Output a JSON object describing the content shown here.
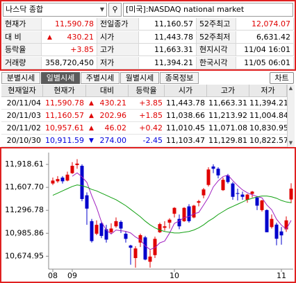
{
  "header": {
    "market_select": "나스닥 종합",
    "market_name": "[미국]:NASDAQ national market"
  },
  "quote": {
    "rows": [
      [
        {
          "label": "현재가",
          "value": "11,590.78",
          "color": "#e00000"
        },
        {
          "label": "전일종가",
          "value": "11,160.57"
        },
        {
          "label": "52주최고",
          "value": "12,074.07",
          "color": "#e00000"
        }
      ],
      [
        {
          "label": "대 비",
          "sign": "▲",
          "value": "430.21",
          "color": "#e00000"
        },
        {
          "label": "시가",
          "value": "11,443.78"
        },
        {
          "label": "52주최저",
          "value": "6,631.42"
        }
      ],
      [
        {
          "label": "등락율",
          "value": "+3.85",
          "color": "#e00000"
        },
        {
          "label": "고가",
          "value": "11,663.31"
        },
        {
          "label": "현지시각",
          "value": "11/04 16:01"
        }
      ],
      [
        {
          "label": "거래량",
          "value": "358,720,450"
        },
        {
          "label": "저가",
          "value": "11,394.21"
        },
        {
          "label": "한국시각",
          "value": "11/05 06:01"
        }
      ]
    ]
  },
  "tabs": {
    "items": [
      "분별시세",
      "일별시세",
      "주별시세",
      "월별시세",
      "종목정보"
    ],
    "active": 1,
    "button": "차트"
  },
  "daily": {
    "columns": [
      "현재일자",
      "현재가",
      "대비",
      "등락율",
      "시가",
      "고가",
      "저가"
    ],
    "rows": [
      [
        "20/11/04",
        "11,590.78",
        "▲",
        "430.21",
        "+3.85",
        "11,443.78",
        "11,663.31",
        "11,394.21"
      ],
      [
        "20/11/03",
        "11,160.57",
        "▲",
        "202.96",
        "+1.85",
        "11,038.66",
        "11,213.92",
        "11,004.84"
      ],
      [
        "20/11/02",
        "10,957.61",
        "▲",
        "46.02",
        "+0.42",
        "11,010.45",
        "11,071.08",
        "10,830.95"
      ],
      [
        "20/10/30",
        "10,911.59",
        "▼",
        "274.00",
        "-2.45",
        "11,103.47",
        "11,129.81",
        "10,822.57"
      ]
    ]
  },
  "chart_data": {
    "type": "candlestick",
    "up_color": "#e00000",
    "down_color": "#0000cc",
    "categories": [
      "08",
      null,
      null,
      null,
      "09",
      null,
      null,
      null,
      null,
      null,
      null,
      null,
      null,
      null,
      null,
      null,
      null,
      null,
      null,
      null,
      null,
      null,
      null,
      null,
      null,
      "10",
      null,
      null,
      null,
      null,
      null,
      null,
      null,
      null,
      null,
      null,
      null,
      null,
      null,
      null,
      null,
      null,
      null,
      null,
      null,
      null,
      null,
      "11",
      null,
      null
    ],
    "ohlc": [
      [
        11660,
        11740,
        11640,
        11700
      ],
      [
        11690,
        11760,
        11670,
        11720
      ],
      [
        11740,
        11760,
        11660,
        11690
      ],
      [
        11700,
        11820,
        11690,
        11780
      ],
      [
        11800,
        11950,
        11790,
        11900
      ],
      [
        11910,
        11990,
        11860,
        11930
      ],
      [
        11900,
        11920,
        11420,
        11450
      ],
      [
        11500,
        11540,
        11100,
        11320
      ],
      [
        11150,
        11180,
        10860,
        10880
      ],
      [
        10980,
        11160,
        10960,
        11100
      ],
      [
        11120,
        11140,
        10920,
        10950
      ],
      [
        11040,
        11100,
        10860,
        10900
      ],
      [
        11000,
        11120,
        10980,
        11050
      ],
      [
        11080,
        11200,
        11060,
        11150
      ],
      [
        11140,
        11160,
        10990,
        11050
      ],
      [
        10980,
        11010,
        10860,
        10910
      ],
      [
        10820,
        10830,
        10560,
        10790
      ],
      [
        10650,
        10810,
        10520,
        10780
      ],
      [
        10860,
        10980,
        10800,
        10960
      ],
      [
        10930,
        10950,
        10620,
        10630
      ],
      [
        10600,
        10760,
        10520,
        10670
      ],
      [
        10690,
        10940,
        10650,
        10910
      ],
      [
        11000,
        11130,
        10990,
        11110
      ],
      [
        11060,
        11150,
        11020,
        11080
      ],
      [
        11130,
        11190,
        11050,
        11170
      ],
      [
        11250,
        11340,
        11200,
        11330
      ],
      [
        11180,
        11240,
        11040,
        11080
      ],
      [
        11150,
        11340,
        11140,
        11330
      ],
      [
        11350,
        11380,
        11130,
        11150
      ],
      [
        11200,
        11370,
        11190,
        11360
      ],
      [
        11400,
        11440,
        11350,
        11420
      ],
      [
        11500,
        11600,
        11460,
        11580
      ],
      [
        11640,
        11880,
        11620,
        11850
      ],
      [
        11890,
        11920,
        11800,
        11860
      ],
      [
        11860,
        11880,
        11730,
        11770
      ],
      [
        11570,
        11740,
        11560,
        11710
      ],
      [
        11770,
        11790,
        11660,
        11680
      ],
      [
        11660,
        11680,
        11440,
        11480
      ],
      [
        11530,
        11590,
        11430,
        11520
      ],
      [
        11510,
        11550,
        11440,
        11480
      ],
      [
        11440,
        11520,
        11400,
        11510
      ],
      [
        11520,
        11560,
        11470,
        11550
      ],
      [
        11470,
        11490,
        11300,
        11360
      ],
      [
        11300,
        11440,
        11280,
        11430
      ],
      [
        11300,
        11310,
        11000,
        11000
      ],
      [
        11070,
        11240,
        11050,
        11180
      ],
      [
        11103.47,
        11129.81,
        10822.57,
        10911.59
      ],
      [
        11010.45,
        11071.08,
        10830.95,
        10957.61
      ],
      [
        11038.66,
        11213.92,
        11004.84,
        11160.57
      ],
      [
        11443.78,
        11663.31,
        11394.21,
        11590.78
      ]
    ],
    "ma_lines": [
      {
        "color": "#a020c0",
        "values": [
          null,
          null,
          null,
          null,
          11758,
          11804,
          11750,
          11676,
          11496,
          11336,
          11140,
          11030,
          10976,
          11030,
          11020,
          11012,
          10990,
          10936,
          10898,
          10814,
          10766,
          10790,
          10856,
          10880,
          10988,
          11120,
          11154,
          11198,
          11212,
          11250,
          11268,
          11368,
          11472,
          11614,
          11696,
          11754,
          11774,
          11700,
          11632,
          11574,
          11534,
          11508,
          11484,
          11466,
          11370,
          11304,
          11176,
          11096,
          11042,
          11160
        ]
      },
      {
        "color": "#10a010",
        "values": [
          11500,
          11530,
          11560,
          11590,
          11620,
          11640,
          11630,
          11610,
          11580,
          11560,
          11530,
          11500,
          11470,
          11440,
          11400,
          11360,
          11310,
          11260,
          11210,
          11150,
          11100,
          11060,
          11030,
          11010,
          11000,
          10990,
          10990,
          11000,
          11010,
          11030,
          11060,
          11100,
          11150,
          11190,
          11240,
          11280,
          11320,
          11350,
          11380,
          11410,
          11440,
          11460,
          11480,
          11490,
          11490,
          11480,
          11460,
          11430,
          11410,
          11400
        ]
      }
    ],
    "ylim": [
      10500,
      12060
    ],
    "yticks": [
      {
        "value": 11918.61,
        "label": "11,918.61"
      },
      {
        "value": 11607.7,
        "label": "11,607.70"
      },
      {
        "value": 11296.78,
        "label": "11,296.78"
      },
      {
        "value": 10985.86,
        "label": "10,985.86"
      },
      {
        "value": 10674.95,
        "label": "10,674.95"
      }
    ]
  }
}
